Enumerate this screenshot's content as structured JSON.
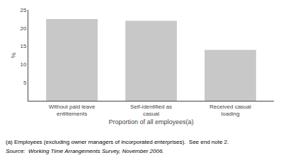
{
  "chart_data": {
    "type": "bar",
    "categories": [
      "Without paid leave entitlements",
      "Self-identified as casual",
      "Received casual loading"
    ],
    "values": [
      22.5,
      22.0,
      14.0
    ],
    "color": "#c8c8c8",
    "xlabel": "Proportion of all employees(a)",
    "ylabel": "%",
    "ylim": [
      0,
      25
    ],
    "yticks": [
      {
        "value": 0,
        "label": ""
      },
      5,
      10,
      15,
      20,
      25
    ],
    "grid": false,
    "annotations": [
      "(a) Employees (excluding owner managers of incorporated enterprises).  See end note 2.",
      "Source:  Working Time Arrangements Survey, November 2006."
    ]
  }
}
